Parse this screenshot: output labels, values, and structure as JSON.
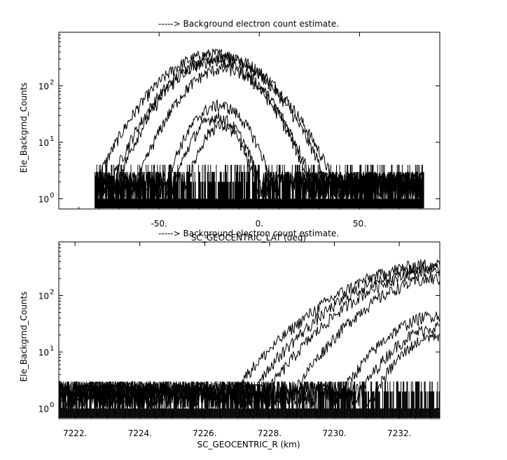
{
  "chart_data": [
    {
      "type": "line",
      "title": "-----> Background electron count estimate.",
      "xlabel": "SC_GEOCENTRIC_LAT (deg)",
      "ylabel": "Ele_Backgrnd_Counts",
      "xlim": [
        -100,
        90
      ],
      "ylim_log10": [
        -0.18,
        2.95
      ],
      "y_scale": "log",
      "x_ticks": [
        {
          "value": -50,
          "label": "-50."
        },
        {
          "value": 0,
          "label": "0."
        },
        {
          "value": 50,
          "label": "50."
        }
      ],
      "y_ticks": [
        {
          "value": 1,
          "base": "10",
          "exp": "0"
        },
        {
          "value": 10,
          "base": "10",
          "exp": "1"
        },
        {
          "value": 100,
          "base": "10",
          "exp": "2"
        }
      ],
      "x_range_of_data": [
        -82,
        82
      ],
      "series": [
        {
          "peak_x": -22,
          "peak_y": 370,
          "width": 26
        },
        {
          "peak_x": -20,
          "peak_y": 320,
          "width": 24
        },
        {
          "peak_x": -22,
          "peak_y": 280,
          "width": 22
        },
        {
          "peak_x": -18,
          "peak_y": 200,
          "width": 20
        },
        {
          "peak_x": -20,
          "peak_y": 45,
          "width": 15
        },
        {
          "peak_x": -21,
          "peak_y": 28,
          "width": 13
        },
        {
          "peak_x": -19,
          "peak_y": 20,
          "width": 11
        }
      ],
      "background_noise_counts": [
        1,
        2,
        3,
        4
      ]
    },
    {
      "type": "line",
      "title": "-----> Background electron count estimate.",
      "xlabel": "SC_GEOCENTRIC_R (km)",
      "ylabel": "Ele_Backgrnd_Counts",
      "xlim": [
        7221.5,
        7233.25
      ],
      "ylim_log10": [
        -0.18,
        2.95
      ],
      "y_scale": "log",
      "x_ticks": [
        {
          "value": 7222,
          "label": "7222."
        },
        {
          "value": 7224,
          "label": "7224."
        },
        {
          "value": 7226,
          "label": "7226."
        },
        {
          "value": 7228,
          "label": "7228."
        },
        {
          "value": 7230,
          "label": "7230."
        },
        {
          "value": 7232,
          "label": "7232."
        }
      ],
      "y_ticks": [
        {
          "value": 1,
          "base": "10",
          "exp": "0"
        },
        {
          "value": 10,
          "base": "10",
          "exp": "1"
        },
        {
          "value": 100,
          "base": "10",
          "exp": "2"
        }
      ],
      "x_range_of_data": [
        7221.5,
        7233.25
      ],
      "series": [
        {
          "peak_y": 370,
          "rise_scale": 2.8
        },
        {
          "peak_y": 320,
          "rise_scale": 2.6
        },
        {
          "peak_y": 280,
          "rise_scale": 2.4
        },
        {
          "peak_y": 200,
          "rise_scale": 2.1
        },
        {
          "peak_y": 45,
          "rise_scale": 1.7
        },
        {
          "peak_y": 28,
          "rise_scale": 1.5
        },
        {
          "peak_y": 20,
          "rise_scale": 1.3
        }
      ],
      "background_noise_counts": [
        1,
        2,
        3
      ]
    }
  ]
}
